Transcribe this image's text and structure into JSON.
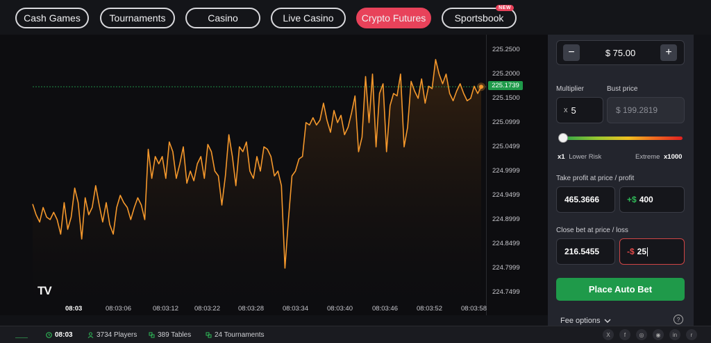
{
  "nav": {
    "tabs": [
      "Cash Games",
      "Tournaments",
      "Casino",
      "Live Casino",
      "Crypto Futures",
      "Sportsbook"
    ],
    "active": "Crypto Futures",
    "new_badge": "NEW"
  },
  "chart_data": {
    "type": "line",
    "current_price": "225.1739",
    "y_ticks": [
      "225.2500",
      "225.2000",
      "225.1500",
      "225.0999",
      "225.0499",
      "224.9999",
      "224.9499",
      "224.8999",
      "224.8499",
      "224.7999",
      "224.7499"
    ],
    "x_ticks": [
      "08:03",
      "08:03:06",
      "08:03:12",
      "08:03:22",
      "08:03:28",
      "08:03:34",
      "08:03:40",
      "08:03:46",
      "08:03:52",
      "08:03:58"
    ],
    "ylim": [
      224.73,
      225.27
    ],
    "series": [
      {
        "values": [
          224.932,
          224.91,
          224.895,
          224.925,
          224.905,
          224.9,
          224.915,
          224.9,
          224.87,
          224.935,
          224.88,
          224.905,
          224.965,
          224.935,
          224.86,
          224.945,
          224.91,
          224.925,
          224.97,
          224.93,
          224.895,
          224.935,
          224.89,
          224.87,
          224.925,
          224.95,
          224.935,
          224.925,
          224.9,
          224.925,
          224.945,
          224.93,
          224.9,
          225.045,
          224.985,
          225.03,
          225.015,
          225.03,
          224.985,
          225.06,
          225.04,
          224.985,
          225.015,
          225.05,
          224.975,
          225.0,
          224.98,
          225.015,
          225.03,
          224.985,
          225.055,
          225.04,
          225.0,
          224.99,
          224.93,
          224.99,
          225.075,
          225.03,
          224.97,
          225.05,
          225.04,
          225.06,
          225.0,
          224.985,
          225.03,
          225.0,
          225.05,
          225.045,
          225.03,
          224.99,
          225.0,
          224.97,
          224.8,
          224.9,
          224.99,
          225.0,
          225.025,
          225.03,
          225.1,
          225.095,
          225.11,
          225.095,
          225.105,
          225.14,
          225.105,
          225.08,
          225.125,
          225.1,
          225.115,
          225.075,
          225.09,
          225.12,
          225.155,
          225.04,
          225.07,
          225.195,
          225.1,
          225.2,
          225.05,
          225.16,
          225.18,
          225.04,
          225.135,
          225.16,
          225.155,
          225.2,
          225.05,
          225.09,
          225.185,
          225.165,
          225.15,
          225.19,
          225.14,
          225.175,
          225.17,
          225.23,
          225.2,
          225.18,
          225.2,
          225.16,
          225.145,
          225.165,
          225.18,
          225.16,
          225.145,
          225.15,
          225.175,
          225.16,
          225.1739
        ]
      }
    ]
  },
  "watermark": "TV",
  "bet_panel": {
    "amount": "$ 75.00",
    "minus": "−",
    "plus": "+",
    "multiplier_label": "Multiplier",
    "bust_label": "Bust price",
    "multiplier_prefix": "x",
    "multiplier_value": "5",
    "bust_value": "$ 199.2819",
    "risk_min": "x1",
    "risk_min_label": "Lower Risk",
    "risk_max_label": "Extreme",
    "risk_max": "x1000",
    "take_profit_label": "Take profit at price / profit",
    "take_profit_price": "465.3666",
    "take_profit_prefix": "+$",
    "take_profit_amount": "400",
    "close_bet_label": "Close bet at price / loss",
    "close_bet_price": "216.5455",
    "close_bet_prefix": "-$",
    "close_bet_amount": "25",
    "place_button": "Place Auto Bet",
    "fee_options": "Fee options",
    "help": "?"
  },
  "status": {
    "time": "08:03",
    "players": "3734 Players",
    "tables": "389 Tables",
    "tournaments": "24 Tournaments",
    "social": [
      "X",
      "f",
      "◎",
      "◉",
      "in",
      "r"
    ]
  },
  "colors": {
    "accent": "#e8425a",
    "line": "#f5982c",
    "green": "#22a34e",
    "loss": "#e04848"
  }
}
